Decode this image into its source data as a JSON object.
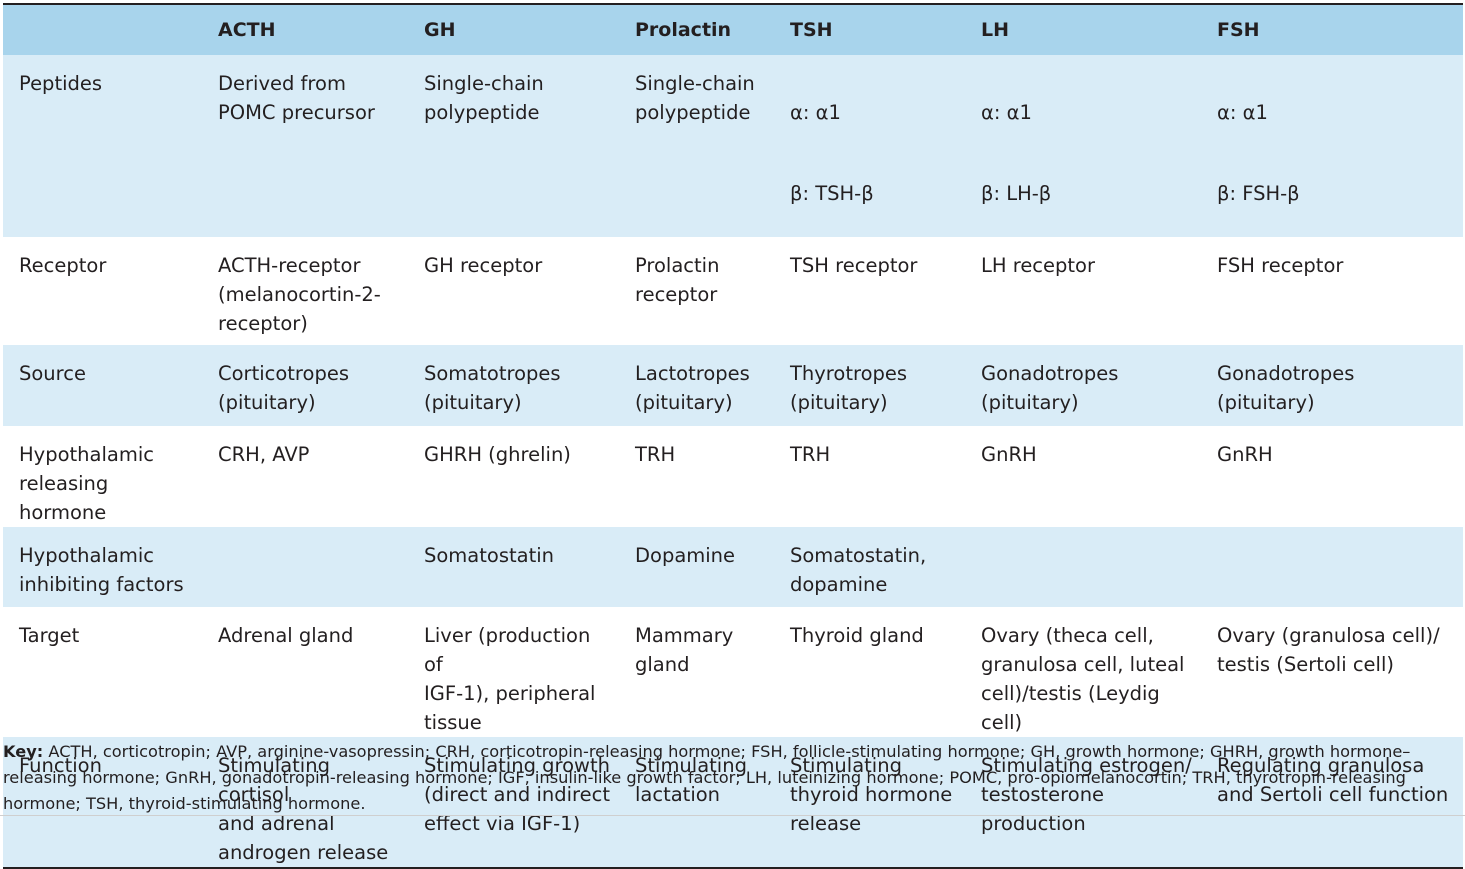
{
  "table": {
    "headers": [
      "",
      "ACTH",
      "GH",
      "Prolactin",
      "TSH",
      "LH",
      "FSH"
    ],
    "rows": [
      {
        "label": "Peptides",
        "cells": [
          "Derived from\nPOMC precursor",
          "Single-chain\npolypeptide",
          "Single-chain\npolypeptide",
          [
            "α: α1",
            "β: TSH-β"
          ],
          [
            "α: α1",
            "β: LH-β"
          ],
          [
            "α: α1",
            "β: FSH-β"
          ]
        ]
      },
      {
        "label": "Receptor",
        "cells": [
          "ACTH-receptor\n(melanocortin-2-\nreceptor)",
          "GH receptor",
          "Prolactin\nreceptor",
          "TSH receptor",
          "LH receptor",
          "FSH receptor"
        ]
      },
      {
        "label": "Source",
        "cells": [
          "Corticotropes\n(pituitary)",
          "Somatotropes\n(pituitary)",
          "Lactotropes\n(pituitary)",
          "Thyrotropes\n(pituitary)",
          "Gonadotropes\n(pituitary)",
          "Gonadotropes\n(pituitary)"
        ]
      },
      {
        "label": "Hypothalamic\nreleasing hormone",
        "cells": [
          "CRH, AVP",
          "GHRH (ghrelin)",
          "TRH",
          "TRH",
          "GnRH",
          "GnRH"
        ]
      },
      {
        "label": "Hypothalamic\ninhibiting factors",
        "cells": [
          "",
          "Somatostatin",
          "Dopamine",
          "Somatostatin,\ndopamine",
          "",
          ""
        ]
      },
      {
        "label": "Target",
        "cells": [
          "Adrenal gland",
          "Liver (production of\nIGF-1), peripheral\ntissue",
          "Mammary\ngland",
          "Thyroid gland",
          "Ovary (theca cell,\ngranulosa cell, luteal\ncell)/testis (Leydig cell)",
          "Ovary (granulosa cell)/\ntestis (Sertoli cell)"
        ]
      },
      {
        "label": "Function",
        "cells": [
          "Stimulating cortisol\nand adrenal\nandrogen release",
          "Stimulating growth\n(direct and indirect\neffect via IGF-1)",
          "Stimulating\nlactation",
          "Stimulating\nthyroid hormone\nrelease",
          "Stimulating estrogen/\ntestosterone\nproduction",
          "Regulating granulosa\nand Sertoli cell function"
        ]
      }
    ]
  },
  "key": {
    "label": "Key:",
    "text": " ACTH, corticotropin; AVP, arginine-vasopressin; CRH, corticotropin-releasing hormone; FSH, follicle-stimulating hormone; GH, growth hormone; GHRH, growth hormone–releasing hormone; GnRH, gonadotropin-releasing hormone; IGF, insulin-like growth factor; LH, luteinizing hormone; POMC, pro-opiomelanocortin; TRH, thyrotropin-releasing hormone; TSH, thyroid-stimulating hormone."
  },
  "colors": {
    "header_bg": "#a8d4ec",
    "band_bg": "#d9ecf7",
    "text": "#231f20"
  }
}
